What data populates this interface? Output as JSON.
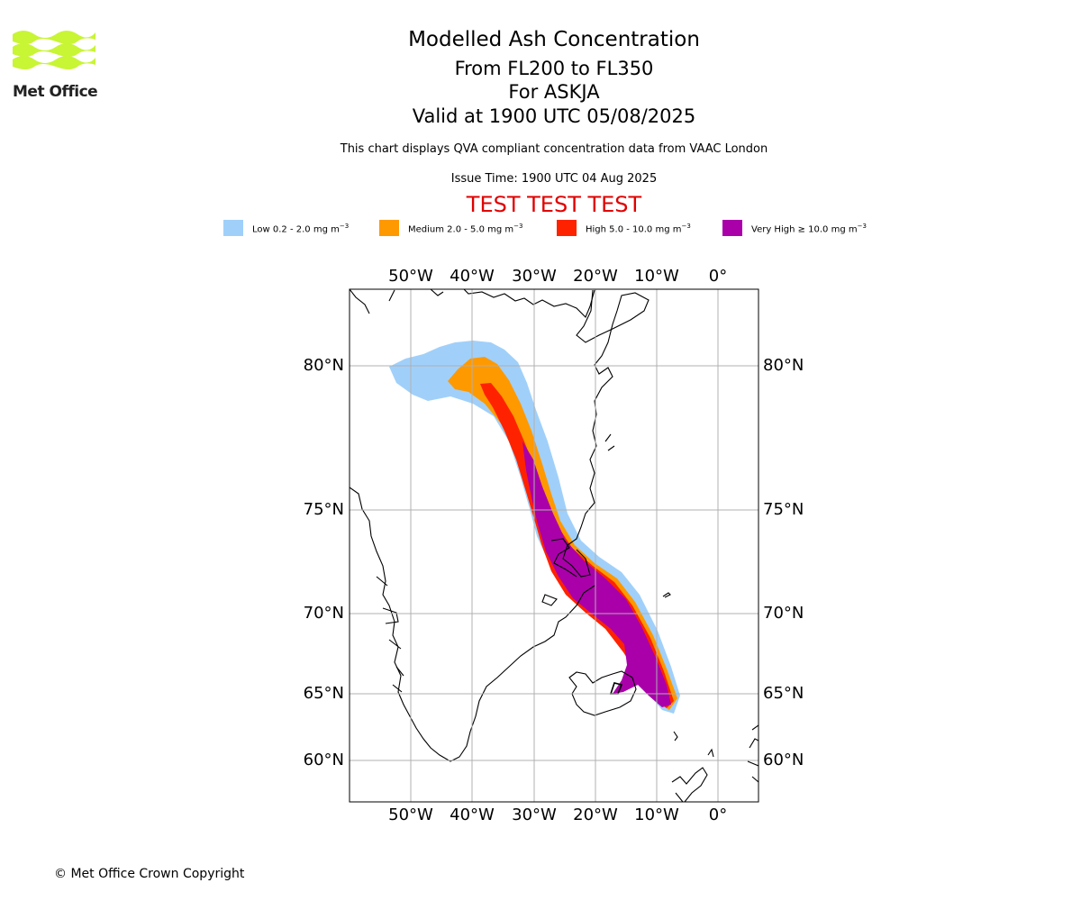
{
  "logo": {
    "text": "Met Office"
  },
  "header": {
    "title": "Modelled Ash Concentration",
    "levels": "From FL200 to FL350",
    "volcano": "For ASKJA",
    "valid": "Valid at 1900 UTC 05/08/2025",
    "source_note": "This chart displays QVA compliant concentration data from VAAC London",
    "issue_time": "Issue Time: 1900 UTC 04 Aug 2025",
    "test_banner": "TEST TEST TEST"
  },
  "legend": [
    {
      "label": "Low 0.2 - 2.0 mg m",
      "sup": "−3",
      "color": "#a0d0fa"
    },
    {
      "label": "Medium 2.0 - 5.0 mg m",
      "sup": "−3",
      "color": "#ff9900"
    },
    {
      "label": "High 5.0 - 10.0 mg m",
      "sup": "−3",
      "color": "#ff2200"
    },
    {
      "label": "Very High ≥ 10.0 mg m",
      "sup": "−3",
      "color": "#aa00aa"
    }
  ],
  "map": {
    "lon_labels": [
      "50°W",
      "40°W",
      "30°W",
      "20°W",
      "10°W",
      "0°"
    ],
    "lat_labels": [
      "80°N",
      "75°N",
      "70°N",
      "65°N",
      "60°N"
    ],
    "colors": {
      "grid": "#b0b0b0",
      "coast": "#000000",
      "frame": "#000000"
    }
  },
  "footer": {
    "copyright": "© Met Office Crown Copyright"
  }
}
